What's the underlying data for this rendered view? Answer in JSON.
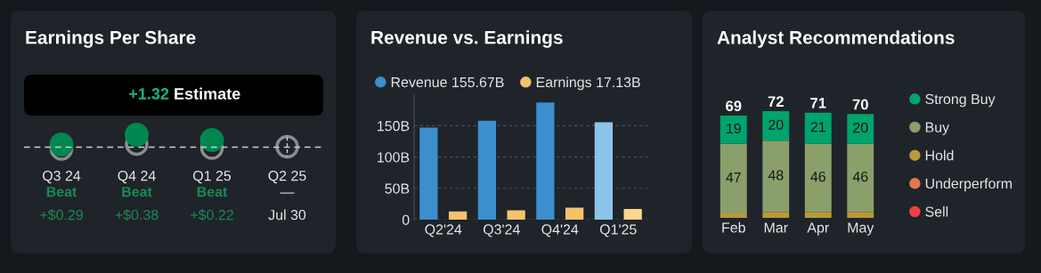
{
  "chart_data": [
    {
      "type": "other",
      "title": "Earnings Per Share",
      "categories": [
        "Q3 24",
        "Q4 24",
        "Q1 25",
        "Q2 25"
      ],
      "annotations": [
        "+1.32",
        "Estimate",
        "Beat",
        "+$0.29",
        "Beat",
        "+$0.38",
        "Beat",
        "+$0.22",
        "—",
        "Jul 30"
      ]
    },
    {
      "type": "bar",
      "title": "Revenue vs. Earnings",
      "categories": [
        "Q2'24",
        "Q3'24",
        "Q4'24",
        "Q1'25"
      ],
      "series": [
        {
          "name": "Revenue 155.67B",
          "color": "#3a8fcc",
          "colors": [
            "#3a8fcc",
            "#3a8fcc",
            "#3a8fcc",
            "#8cc4ea"
          ],
          "values": [
            147,
            158,
            187,
            155.67
          ]
        },
        {
          "name": "Earnings 17.13B",
          "color": "#f5c26b",
          "colors": [
            "#f5c26b",
            "#f5c26b",
            "#f5c26b",
            "#fbd68f"
          ],
          "values": [
            13,
            15,
            19,
            17.13
          ]
        }
      ],
      "ylim": [
        0,
        200
      ],
      "yticks": [
        {
          "value": 0,
          "label": "0"
        },
        {
          "value": 50,
          "label": "50B"
        },
        {
          "value": 100,
          "label": "100B"
        },
        {
          "value": 150,
          "label": "150B"
        }
      ],
      "grid": "y",
      "legend": "top"
    },
    {
      "type": "bar",
      "title": "Analyst Recommendations",
      "categories": [
        "Feb",
        "Mar",
        "Apr",
        "May"
      ],
      "stacked": true,
      "series": [
        {
          "name": "Sell",
          "color": "#f04040",
          "values": [
            0,
            0,
            0,
            0
          ]
        },
        {
          "name": "Underperform",
          "color": "#e07a4a",
          "values": [
            0,
            0,
            0,
            0
          ]
        },
        {
          "name": "Hold",
          "color": "#b89a3a",
          "values": [
            3,
            4,
            4,
            4
          ]
        },
        {
          "name": "Buy",
          "color": "#8a9f6a",
          "values": [
            47,
            48,
            46,
            46
          ],
          "value_labels": [
            "47",
            "48",
            "46",
            "46"
          ]
        },
        {
          "name": "Strong Buy",
          "color": "#00a36c",
          "values": [
            19,
            20,
            21,
            20
          ],
          "value_labels": [
            "19",
            "20",
            "21",
            "20"
          ]
        }
      ],
      "totals": [
        "69",
        "72",
        "71",
        "70"
      ],
      "legend": "right",
      "tick_labels": "x"
    }
  ]
}
